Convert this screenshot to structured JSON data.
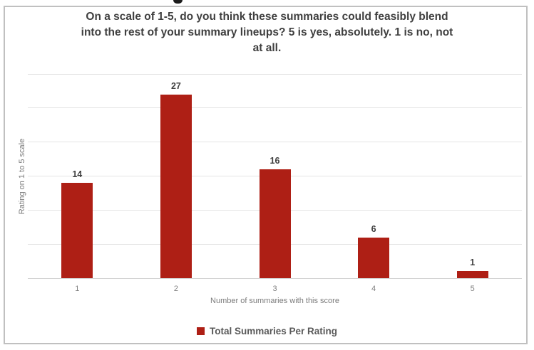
{
  "chart_data": {
    "type": "bar",
    "title": "On a scale of 1-5, do you think these summaries could feasibly blend into the rest of your summary lineups? 5 is yes, absolutely. 1 is no, not at all.",
    "title_lines": [
      "On a scale of 1-5, do you think these summaries could feasibly blend",
      "into the rest of your summary lineups? 5 is yes, absolutely. 1 is no, not",
      "at all."
    ],
    "categories": [
      "1",
      "2",
      "3",
      "4",
      "5"
    ],
    "values": [
      14,
      27,
      16,
      6,
      1
    ],
    "series": [
      {
        "name": "Total Summaries Per Rating",
        "values": [
          14,
          27,
          16,
          6,
          1
        ]
      }
    ],
    "xlabel": "Number of summaries with this score",
    "ylabel": "Rating on 1 to 5 scale",
    "ylim": [
      0,
      30
    ],
    "grid_step": 5,
    "grid": "horizontal-only",
    "y_tick_labels_shown": false,
    "data_labels_shown": true,
    "legend_position": "bottom",
    "colors": {
      "bar": "#ae1f15",
      "title_text": "#3f3f3f",
      "data_label_text": "#404040",
      "axis_text": "#808080",
      "axis_title_text": "#7a7a7a",
      "legend_text": "#595959",
      "gridline": "#e4e4e4",
      "axis_line": "#d4d4d4",
      "border": "#c0c0c0"
    }
  }
}
